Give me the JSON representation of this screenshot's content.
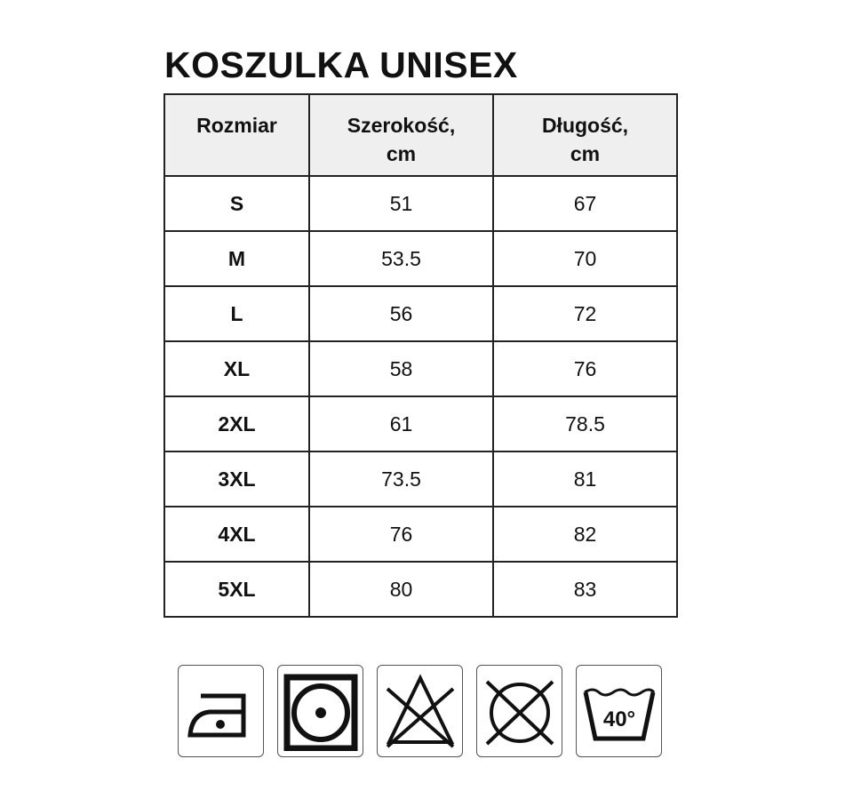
{
  "title": "KOSZULKA UNISEX",
  "table": {
    "header_lines": [
      [
        "Rozmiar"
      ],
      [
        "Szerokość,",
        "cm"
      ],
      [
        "Długość,",
        "cm"
      ]
    ],
    "rows": [
      [
        "S",
        "51",
        "67"
      ],
      [
        "M",
        "53.5",
        "70"
      ],
      [
        "L",
        "56",
        "72"
      ],
      [
        "XL",
        "58",
        "76"
      ],
      [
        "2XL",
        "61",
        "78.5"
      ],
      [
        "3XL",
        "73.5",
        "81"
      ],
      [
        "4XL",
        "76",
        "82"
      ],
      [
        "5XL",
        "80",
        "83"
      ]
    ]
  },
  "care_icons": [
    {
      "name": "iron-low-temperature-icon"
    },
    {
      "name": "tumble-dry-icon"
    },
    {
      "name": "do-not-bleach-icon"
    },
    {
      "name": "do-not-dry-clean-icon"
    },
    {
      "name": "wash-40-icon",
      "label": "40°"
    }
  ]
}
